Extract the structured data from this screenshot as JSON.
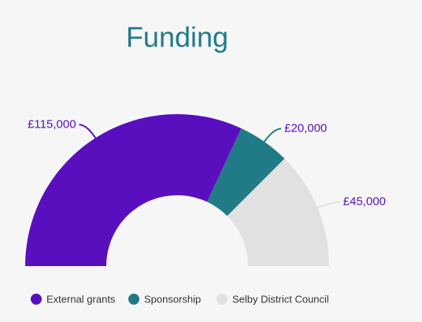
{
  "chart_data": {
    "type": "pie",
    "title": "Funding",
    "categories": [
      "External grants",
      "Sponsorship",
      "Selby District Council"
    ],
    "values": [
      115000,
      20000,
      45000
    ],
    "value_labels": [
      "£115,000",
      "£20,000",
      "£45,000"
    ],
    "colors": [
      "#5a0fbe",
      "#217b87",
      "#e1e1e1"
    ]
  }
}
